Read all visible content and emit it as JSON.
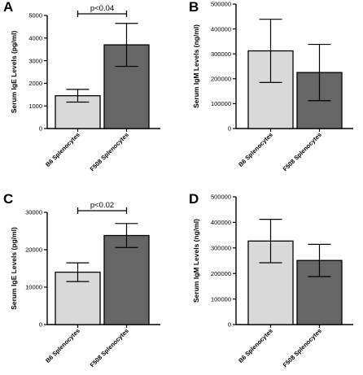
{
  "chart_data": [
    {
      "panel": "A",
      "type": "bar",
      "categories": [
        "B6 Splenocytes",
        "F508 Splenocytes"
      ],
      "values": [
        1450,
        3700
      ],
      "error": [
        280,
        950
      ],
      "colors": [
        "#d9d9d9",
        "#666666"
      ],
      "ylabel": "Serum IgE Levels (pg/ml)",
      "ylim": [
        0,
        5000
      ],
      "yticks": [
        0,
        1000,
        2000,
        3000,
        4000,
        5000
      ],
      "annotation": "p<0.04"
    },
    {
      "panel": "B",
      "type": "bar",
      "categories": [
        "B6 Splenocytes",
        "F508 Splenocytes"
      ],
      "values": [
        312000,
        225000
      ],
      "error": [
        127000,
        113000
      ],
      "colors": [
        "#d9d9d9",
        "#666666"
      ],
      "ylabel": "Serum IgM Levels (ng/ml)",
      "ylim": [
        0,
        500000
      ],
      "yticks": [
        0,
        100000,
        200000,
        300000,
        400000,
        500000
      ],
      "annotation": ""
    },
    {
      "panel": "C",
      "type": "bar",
      "categories": [
        "B6 Splenocytes",
        "F508 Splenocytes"
      ],
      "values": [
        14000,
        23800
      ],
      "error": [
        2500,
        3200
      ],
      "colors": [
        "#d9d9d9",
        "#666666"
      ],
      "ylabel": "Serum IgE Levels (pg/ml)",
      "ylim": [
        0,
        30000
      ],
      "yticks": [
        0,
        10000,
        20000,
        30000
      ],
      "annotation": "p<0.02"
    },
    {
      "panel": "D",
      "type": "bar",
      "categories": [
        "B6 Splenocytes",
        "F508 Splenocytes"
      ],
      "values": [
        327000,
        251000
      ],
      "error": [
        85000,
        63000
      ],
      "colors": [
        "#d9d9d9",
        "#666666"
      ],
      "ylabel": "Serum IgM Levels (ng/ml)",
      "ylim": [
        0,
        500000
      ],
      "yticks": [
        0,
        100000,
        200000,
        300000,
        400000,
        500000
      ],
      "annotation": ""
    }
  ]
}
